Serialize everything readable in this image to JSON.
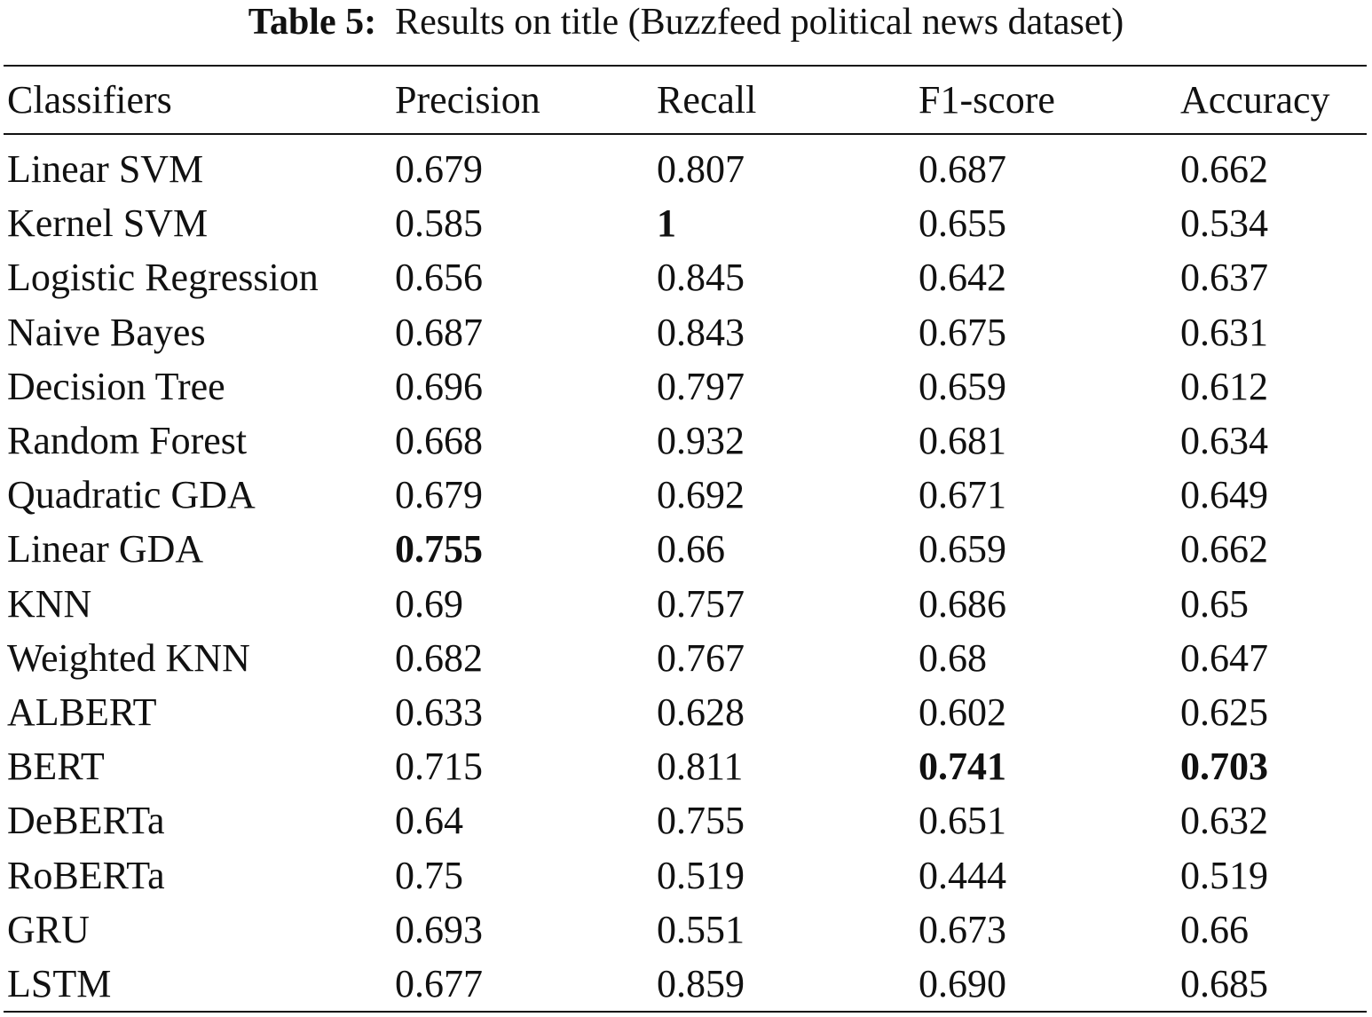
{
  "caption": {
    "label": "Table 5:",
    "text": "Results on title (Buzzfeed political news dataset)"
  },
  "table": {
    "headers": [
      "Classifiers",
      "Precision",
      "Recall",
      "F1-score",
      "Accuracy"
    ],
    "rows": [
      {
        "cells": [
          "Linear SVM",
          "0.679",
          "0.807",
          "0.687",
          "0.662"
        ],
        "bold": []
      },
      {
        "cells": [
          "Kernel SVM",
          "0.585",
          "1",
          "0.655",
          "0.534"
        ],
        "bold": [
          2
        ]
      },
      {
        "cells": [
          "Logistic Regression",
          "0.656",
          "0.845",
          "0.642",
          "0.637"
        ],
        "bold": []
      },
      {
        "cells": [
          "Naive Bayes",
          "0.687",
          "0.843",
          "0.675",
          "0.631"
        ],
        "bold": []
      },
      {
        "cells": [
          "Decision Tree",
          "0.696",
          "0.797",
          "0.659",
          "0.612"
        ],
        "bold": []
      },
      {
        "cells": [
          "Random Forest",
          "0.668",
          "0.932",
          "0.681",
          "0.634"
        ],
        "bold": []
      },
      {
        "cells": [
          "Quadratic GDA",
          "0.679",
          "0.692",
          "0.671",
          "0.649"
        ],
        "bold": []
      },
      {
        "cells": [
          "Linear GDA",
          "0.755",
          "0.66",
          "0.659",
          "0.662"
        ],
        "bold": [
          1
        ]
      },
      {
        "cells": [
          "KNN",
          "0.69",
          "0.757",
          "0.686",
          "0.65"
        ],
        "bold": []
      },
      {
        "cells": [
          "Weighted KNN",
          "0.682",
          "0.767",
          "0.68",
          "0.647"
        ],
        "bold": []
      },
      {
        "cells": [
          "ALBERT",
          "0.633",
          "0.628",
          "0.602",
          "0.625"
        ],
        "bold": []
      },
      {
        "cells": [
          "BERT",
          "0.715",
          "0.811",
          "0.741",
          "0.703"
        ],
        "bold": [
          3,
          4
        ]
      },
      {
        "cells": [
          "DeBERTa",
          "0.64",
          "0.755",
          "0.651",
          "0.632"
        ],
        "bold": []
      },
      {
        "cells": [
          "RoBERTa",
          "0.75",
          "0.519",
          "0.444",
          "0.519"
        ],
        "bold": []
      },
      {
        "cells": [
          "GRU",
          "0.693",
          "0.551",
          "0.673",
          "0.66"
        ],
        "bold": []
      },
      {
        "cells": [
          "LSTM",
          "0.677",
          "0.859",
          "0.690",
          "0.685"
        ],
        "bold": []
      }
    ]
  }
}
